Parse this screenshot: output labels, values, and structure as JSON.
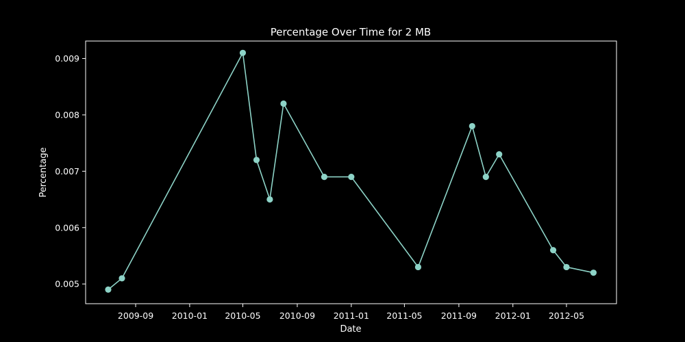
{
  "chart_data": {
    "type": "line",
    "title": "Percentage Over Time for 2 MB",
    "xlabel": "Date",
    "ylabel": "Percentage",
    "x_ticks": [
      "2009-09",
      "2010-01",
      "2010-05",
      "2010-09",
      "2011-01",
      "2011-05",
      "2011-09",
      "2012-01",
      "2012-05"
    ],
    "y_ticks": [
      "0.005",
      "0.006",
      "0.007",
      "0.008",
      "0.009"
    ],
    "xlim": [
      "2009-05-11",
      "2012-08-22"
    ],
    "ylim": [
      0.00465,
      0.00931
    ],
    "grid": false,
    "line_color": "#8dd3c7",
    "background": "#000000",
    "series": [
      {
        "x": [
          "2009-07-01",
          "2009-08-01",
          "2010-05-01",
          "2010-06-01",
          "2010-07-01",
          "2010-08-01",
          "2010-11-01",
          "2011-01-01",
          "2011-06-01",
          "2011-10-01",
          "2011-11-01",
          "2011-12-01",
          "2012-04-01",
          "2012-05-01",
          "2012-07-01"
        ],
        "y": [
          0.0049,
          0.0051,
          0.0091,
          0.0072,
          0.0065,
          0.0082,
          0.0069,
          0.0069,
          0.0053,
          0.0078,
          0.0069,
          0.0073,
          0.0056,
          0.0053,
          0.0052
        ]
      }
    ]
  }
}
